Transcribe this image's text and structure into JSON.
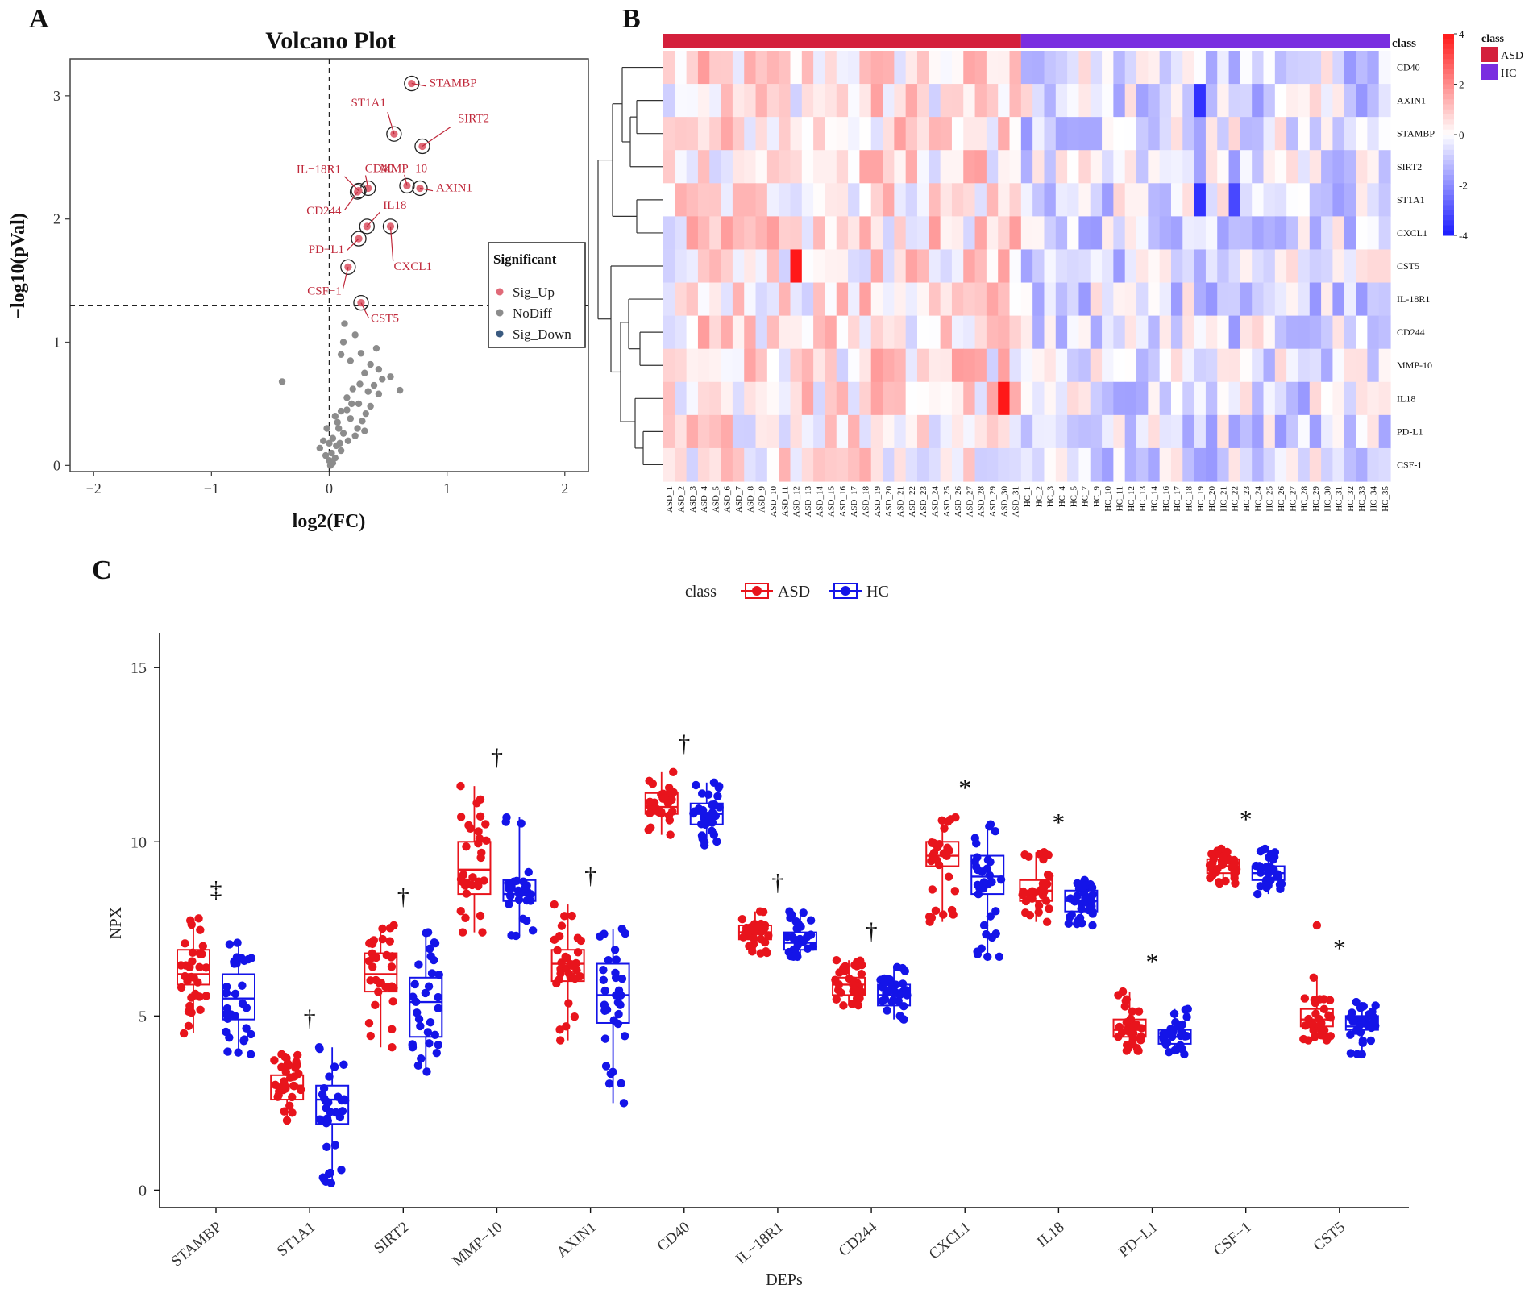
{
  "panel_labels": [
    "A",
    "B",
    "C"
  ],
  "colors": {
    "asd": "#e8141c",
    "hc": "#1414e8",
    "sig_up": "#e06a78",
    "nodiff": "#8c8c8c",
    "sig_down": "#3a5a80",
    "label_red": "#c0283a",
    "heat_high": "#f01818",
    "heat_mid": "#ffffff",
    "heat_low": "#1a1af0",
    "class_asd": "#d4203c",
    "class_hc": "#7a2ee0"
  },
  "chart_data": [
    {
      "id": "volcano",
      "type": "scatter",
      "title": "Volcano Plot",
      "xlabel": "log2(FC)",
      "ylabel": "−log10(pVal)",
      "xlim": [
        -2.2,
        2.2
      ],
      "ylim": [
        -0.05,
        3.3
      ],
      "xticks": [
        -2,
        -1,
        0,
        1,
        2
      ],
      "xtick_labels": [
        "−2",
        "−1",
        "0",
        "1",
        "2"
      ],
      "yticks": [
        0,
        1,
        2,
        3
      ],
      "ytick_labels": [
        "0",
        "1",
        "2",
        "3"
      ],
      "threshold_x": 0,
      "threshold_y": 1.3,
      "legend": {
        "title": "Significant",
        "entries": [
          "Sig_Up",
          "NoDiff",
          "Sig_Down"
        ],
        "position": "right"
      },
      "labeled_points": [
        {
          "name": "STAMBP",
          "x": 0.7,
          "y": 3.1
        },
        {
          "name": "ST1A1",
          "x": 0.55,
          "y": 2.69
        },
        {
          "name": "SIRT2",
          "x": 0.79,
          "y": 2.59
        },
        {
          "name": "MMP−10",
          "x": 0.66,
          "y": 2.27
        },
        {
          "name": "AXIN1",
          "x": 0.77,
          "y": 2.25
        },
        {
          "name": "CD40",
          "x": 0.33,
          "y": 2.25
        },
        {
          "name": "IL−18R1",
          "x": 0.25,
          "y": 2.23
        },
        {
          "name": "CD244",
          "x": 0.24,
          "y": 2.22
        },
        {
          "name": "IL18",
          "x": 0.32,
          "y": 1.94
        },
        {
          "name": "CXCL1",
          "x": 0.52,
          "y": 1.94
        },
        {
          "name": "PD−L1",
          "x": 0.25,
          "y": 1.84
        },
        {
          "name": "CSF−1",
          "x": 0.16,
          "y": 1.61
        },
        {
          "name": "CST5",
          "x": 0.27,
          "y": 1.32
        }
      ],
      "nodiff_points": [
        [
          -0.4,
          0.68
        ],
        [
          0.13,
          1.15
        ],
        [
          0.22,
          1.06
        ],
        [
          0.27,
          0.91
        ],
        [
          0.1,
          0.9
        ],
        [
          0.3,
          0.75
        ],
        [
          0.35,
          0.82
        ],
        [
          0.42,
          0.78
        ],
        [
          0.45,
          0.7
        ],
        [
          0.52,
          0.72
        ],
        [
          0.6,
          0.61
        ],
        [
          0.42,
          0.58
        ],
        [
          0.33,
          0.6
        ],
        [
          0.2,
          0.62
        ],
        [
          0.15,
          0.55
        ],
        [
          0.25,
          0.5
        ],
        [
          0.35,
          0.48
        ],
        [
          0.1,
          0.44
        ],
        [
          0.05,
          0.4
        ],
        [
          0.18,
          0.38
        ],
        [
          0.28,
          0.36
        ],
        [
          0.08,
          0.3
        ],
        [
          0.12,
          0.26
        ],
        [
          0.22,
          0.24
        ],
        [
          0.03,
          0.22
        ],
        [
          -0.05,
          0.2
        ],
        [
          0.0,
          0.18
        ],
        [
          0.06,
          0.16
        ],
        [
          -0.08,
          0.14
        ],
        [
          0.1,
          0.12
        ],
        [
          0.02,
          0.1
        ],
        [
          -0.03,
          0.08
        ],
        [
          0.05,
          0.06
        ],
        [
          0.0,
          0.04
        ],
        [
          0.03,
          0.02
        ],
        [
          0.15,
          0.45
        ],
        [
          0.38,
          0.65
        ],
        [
          0.18,
          0.85
        ],
        [
          0.24,
          0.3
        ],
        [
          0.16,
          0.2
        ],
        [
          -0.02,
          0.3
        ],
        [
          0.07,
          0.35
        ],
        [
          0.31,
          0.42
        ],
        [
          0.4,
          0.95
        ],
        [
          0.12,
          1.0
        ],
        [
          0.19,
          0.5
        ],
        [
          0.26,
          0.66
        ],
        [
          0.09,
          0.18
        ],
        [
          0.01,
          0.0
        ],
        [
          0.3,
          0.28
        ]
      ]
    },
    {
      "id": "heatmap",
      "type": "heatmap",
      "class_header": "class",
      "legend_title": "class",
      "legend_entries": [
        "ASD",
        "HC"
      ],
      "colorbar_ticks": [
        4,
        2,
        0,
        -2,
        -4
      ],
      "colorbar_labels": [
        "4",
        "2",
        "0",
        "-2",
        "-4"
      ],
      "rows": [
        "CD40",
        "AXIN1",
        "STAMBP",
        "SIRT2",
        "ST1A1",
        "CXCL1",
        "CST5",
        "IL-18R1",
        "CD244",
        "MMP-10",
        "IL18",
        "PD-L1",
        "CSF-1"
      ],
      "columns": [
        "ASD_1",
        "ASD_2",
        "ASD_3",
        "ASD_4",
        "ASD_5",
        "ASD_6",
        "ASD_7",
        "ASD_8",
        "ASD_9",
        "ASD_10",
        "ASD_11",
        "ASD_12",
        "ASD_13",
        "ASD_14",
        "ASD_15",
        "ASD_16",
        "ASD_17",
        "ASD_18",
        "ASD_19",
        "ASD_20",
        "ASD_21",
        "ASD_22",
        "ASD_23",
        "ASD_24",
        "ASD_25",
        "ASD_26",
        "ASD_27",
        "ASD_28",
        "ASD_29",
        "ASD_30",
        "ASD_31",
        "HC_1",
        "HC_2",
        "HC_3",
        "HC_4",
        "HC_5",
        "HC_7",
        "HC_9",
        "HC_10",
        "HC_11",
        "HC_12",
        "HC_13",
        "HC_14",
        "HC_16",
        "HC_17",
        "HC_18",
        "HC_19",
        "HC_20",
        "HC_21",
        "HC_22",
        "HC_23",
        "HC_24",
        "HC_25",
        "HC_26",
        "HC_27",
        "HC_28",
        "HC_29",
        "HC_30",
        "HC_31",
        "HC_32",
        "HC_33",
        "HC_34",
        "HC_35"
      ],
      "n_asd": 31,
      "n_hc": 32
    },
    {
      "id": "boxplot",
      "type": "box",
      "legend_title": "class",
      "legend": [
        "ASD",
        "HC"
      ],
      "legend_position": "top",
      "xlabel": "DEPs",
      "ylabel": "NPX",
      "ylim": [
        -0.5,
        16
      ],
      "yticks": [
        0,
        5,
        10,
        15
      ],
      "ytick_labels": [
        "0",
        "5",
        "10",
        "15"
      ],
      "categories": [
        "STAMBP",
        "ST1A1",
        "SIRT2",
        "MMP−10",
        "AXIN1",
        "CD40",
        "IL−18R1",
        "CD244",
        "CXCL1",
        "IL18",
        "PD−L1",
        "CSF−1",
        "CST5"
      ],
      "significance": [
        "‡",
        "†",
        "†",
        "†",
        "†",
        "†",
        "†",
        "†",
        "*",
        "*",
        "*",
        "*",
        "*"
      ],
      "series": [
        {
          "name": "ASD",
          "boxes": [
            {
              "min": 4.5,
              "q1": 5.9,
              "median": 6.2,
              "q3": 6.9,
              "max": 7.8
            },
            {
              "min": 2.0,
              "q1": 2.6,
              "median": 3.0,
              "q3": 3.3,
              "max": 3.9
            },
            {
              "min": 4.1,
              "q1": 5.7,
              "median": 6.2,
              "q3": 6.8,
              "max": 7.6
            },
            {
              "min": 7.4,
              "q1": 8.5,
              "median": 9.2,
              "q3": 10.0,
              "max": 11.6
            },
            {
              "min": 4.3,
              "q1": 6.0,
              "median": 6.5,
              "q3": 6.9,
              "max": 8.2
            },
            {
              "min": 10.2,
              "q1": 10.8,
              "median": 11.0,
              "q3": 11.4,
              "max": 12.0
            },
            {
              "min": 6.8,
              "q1": 7.2,
              "median": 7.4,
              "q3": 7.6,
              "max": 8.0
            },
            {
              "min": 5.3,
              "q1": 5.6,
              "median": 5.9,
              "q3": 6.1,
              "max": 6.6
            },
            {
              "min": 7.7,
              "q1": 9.3,
              "median": 9.6,
              "q3": 10.0,
              "max": 10.7
            },
            {
              "min": 7.7,
              "q1": 8.3,
              "median": 8.6,
              "q3": 8.9,
              "max": 9.7
            },
            {
              "min": 4.0,
              "q1": 4.4,
              "median": 4.6,
              "q3": 4.9,
              "max": 5.7
            },
            {
              "min": 8.8,
              "q1": 9.1,
              "median": 9.3,
              "q3": 9.5,
              "max": 9.8
            },
            {
              "min": 4.3,
              "q1": 4.7,
              "median": 4.9,
              "q3": 5.2,
              "max": 6.1
            }
          ]
        },
        {
          "name": "HC",
          "boxes": [
            {
              "min": 3.9,
              "q1": 4.9,
              "median": 5.5,
              "q3": 6.2,
              "max": 7.1
            },
            {
              "min": 0.2,
              "q1": 1.9,
              "median": 2.6,
              "q3": 3.0,
              "max": 4.1
            },
            {
              "min": 3.4,
              "q1": 4.4,
              "median": 5.4,
              "q3": 6.1,
              "max": 7.4
            },
            {
              "min": 7.3,
              "q1": 8.3,
              "median": 8.5,
              "q3": 8.9,
              "max": 10.7
            },
            {
              "min": 2.5,
              "q1": 4.8,
              "median": 5.6,
              "q3": 6.5,
              "max": 7.5
            },
            {
              "min": 9.9,
              "q1": 10.5,
              "median": 10.8,
              "q3": 11.1,
              "max": 11.7
            },
            {
              "min": 6.7,
              "q1": 6.9,
              "median": 7.1,
              "q3": 7.4,
              "max": 8.0
            },
            {
              "min": 4.9,
              "q1": 5.3,
              "median": 5.6,
              "q3": 5.9,
              "max": 6.4
            },
            {
              "min": 6.7,
              "q1": 8.5,
              "median": 9.0,
              "q3": 9.6,
              "max": 10.5
            },
            {
              "min": 7.6,
              "q1": 8.0,
              "median": 8.3,
              "q3": 8.6,
              "max": 8.9
            },
            {
              "min": 3.9,
              "q1": 4.2,
              "median": 4.4,
              "q3": 4.6,
              "max": 5.2
            },
            {
              "min": 8.5,
              "q1": 8.9,
              "median": 9.1,
              "q3": 9.3,
              "max": 9.8
            },
            {
              "min": 3.9,
              "q1": 4.6,
              "median": 4.7,
              "q3": 5.0,
              "max": 5.4
            }
          ]
        }
      ],
      "outliers": [
        {
          "series": "ASD",
          "category": "CST5",
          "value": 7.6
        },
        {
          "series": "HC",
          "category": "CXCL1",
          "value": 6.7
        }
      ]
    }
  ]
}
